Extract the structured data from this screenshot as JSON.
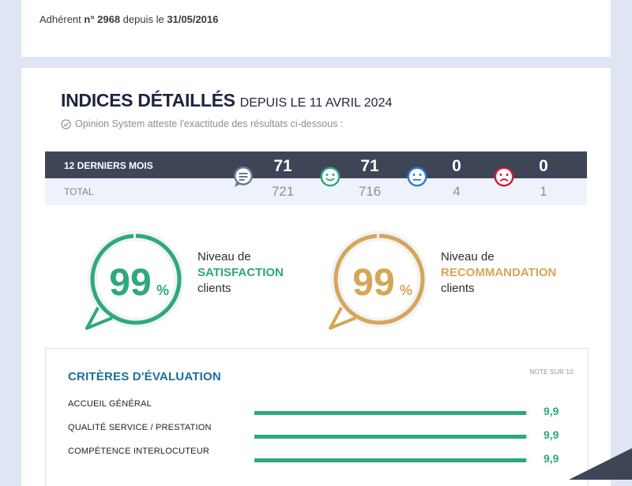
{
  "member": {
    "prefix": "Adhérent ",
    "number_label": "n° 2968",
    "since_word": " depuis le ",
    "since_date": "31/05/2016"
  },
  "section": {
    "title": "INDICES DÉTAILLÉS",
    "subtitle": "DEPUIS LE 11 AVRIL 2024",
    "attestation": "Opinion System atteste l'exactitude des résultats ci-dessous :"
  },
  "stats": {
    "row_12m_label": "12 DERNIERS MOIS",
    "row_total_label": "TOTAL",
    "columns": [
      {
        "icon": "speech-bubble-icon",
        "color": "#6c7a93",
        "last12": "71",
        "total": "721"
      },
      {
        "icon": "happy-face-icon",
        "color": "#2ea87c",
        "last12": "71",
        "total": "716"
      },
      {
        "icon": "neutral-face-icon",
        "color": "#2f7bd6",
        "last12": "0",
        "total": "4"
      },
      {
        "icon": "sad-face-icon",
        "color": "#c8203c",
        "last12": "0",
        "total": "1"
      }
    ]
  },
  "satisfaction": {
    "value": "99",
    "unit": "%",
    "percent": 99,
    "line1": "Niveau de",
    "line2": "SATISFACTION",
    "line3": "clients",
    "color": "#2ea87c"
  },
  "recommendation": {
    "value": "99",
    "unit": "%",
    "percent": 99,
    "line1": "Niveau de",
    "line2": "RECOMMANDATION",
    "line3": "clients",
    "color": "#d6a656"
  },
  "criteria": {
    "title": "CRITÈRES D'ÉVALUATION",
    "note": "NOTE SUR 10",
    "max": 10,
    "items": [
      {
        "label": "ACCUEIL GÉNÉRAL",
        "score": "9,9",
        "value": 9.9
      },
      {
        "label": "QUALITÉ SERVICE / PRESTATION",
        "score": "9,9",
        "value": 9.9
      },
      {
        "label": "COMPÉTENCE INTERLOCUTEUR",
        "score": "9,9",
        "value": 9.9
      }
    ]
  }
}
